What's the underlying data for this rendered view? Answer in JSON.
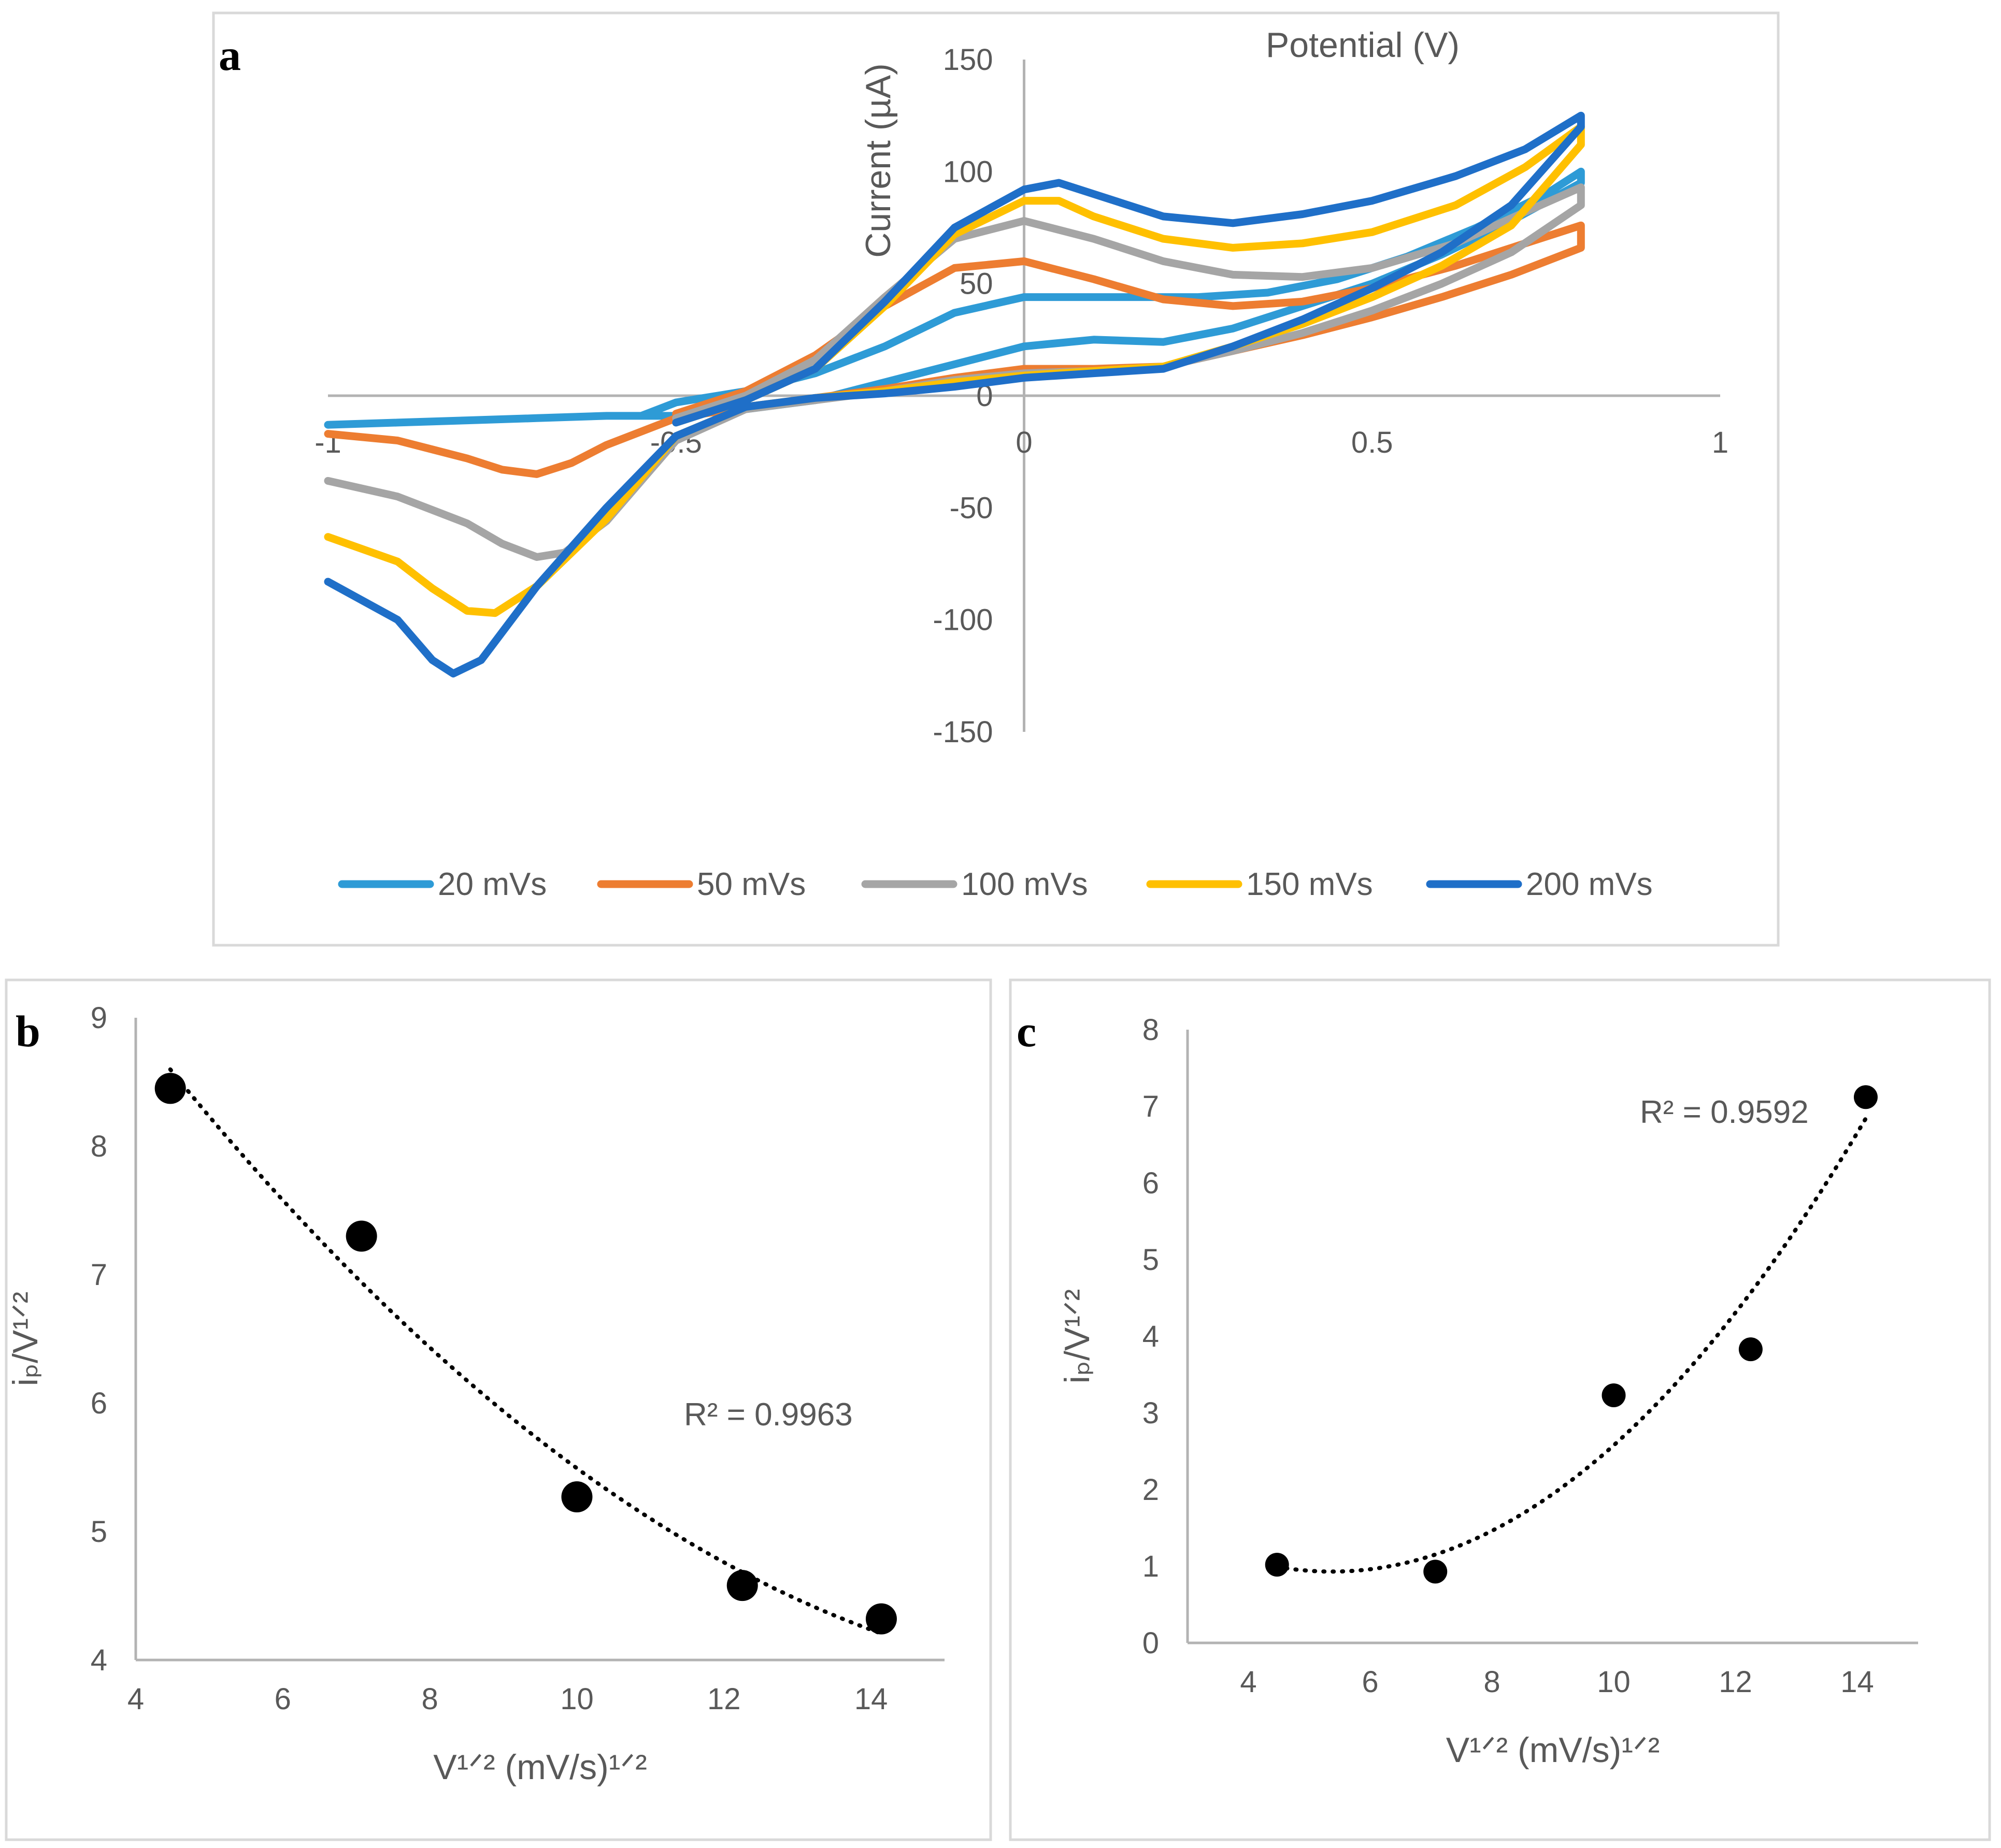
{
  "chart_data": [
    {
      "panel": "a",
      "type": "line",
      "title": "",
      "xlabel": "Potential (V)",
      "ylabel": "Current (µA)",
      "xlim": [
        -1,
        1
      ],
      "ylim": [
        -150,
        150
      ],
      "xticks": [
        -1,
        -0.5,
        0,
        0.5,
        1
      ],
      "yticks": [
        -150,
        -100,
        -50,
        0,
        50,
        100,
        150
      ],
      "xtick_labels": [
        "-1",
        "-0.5",
        "0",
        "0.5",
        "1"
      ],
      "ytick_labels": [
        "-150",
        "-100",
        "-50",
        "0",
        "50",
        "100",
        "150"
      ],
      "legend_position": "bottom",
      "series": [
        {
          "name": "20 mVs",
          "color": "#2e9bd6",
          "x": [
            -1,
            -0.9,
            -0.8,
            -0.7,
            -0.6,
            -0.5,
            -0.4,
            -0.3,
            -0.2,
            -0.1,
            0,
            0.1,
            0.2,
            0.3,
            0.4,
            0.5,
            0.6,
            0.7,
            0.8,
            0.8,
            0.75,
            0.65,
            0.55,
            0.45,
            0.35,
            0.25,
            0.2,
            0.1,
            0,
            -0.1,
            -0.2,
            -0.3,
            -0.4,
            -0.5,
            -0.55
          ],
          "y": [
            -13,
            -12,
            -11,
            -10,
            -9,
            -9,
            -6,
            -2,
            6,
            14,
            22,
            25,
            24,
            30,
            40,
            50,
            63,
            78,
            95,
            100,
            90,
            75,
            62,
            52,
            46,
            44,
            44,
            44,
            44,
            37,
            22,
            10,
            2,
            -3,
            -9
          ]
        },
        {
          "name": "50 mVs",
          "color": "#ed7d31",
          "x": [
            -1,
            -0.9,
            -0.85,
            -0.8,
            -0.75,
            -0.7,
            -0.65,
            -0.6,
            -0.5,
            -0.4,
            -0.3,
            -0.2,
            -0.1,
            0,
            0.1,
            0.2,
            0.3,
            0.4,
            0.5,
            0.6,
            0.7,
            0.8,
            0.8,
            0.72,
            0.62,
            0.5,
            0.4,
            0.3,
            0.2,
            0.1,
            0,
            -0.1,
            -0.2,
            -0.3,
            -0.4,
            -0.5
          ],
          "y": [
            -17,
            -20,
            -24,
            -28,
            -33,
            -35,
            -30,
            -22,
            -10,
            -5,
            -1,
            3,
            8,
            12,
            12,
            13,
            20,
            27,
            35,
            44,
            54,
            66,
            76,
            68,
            58,
            48,
            42,
            40,
            43,
            52,
            60,
            57,
            40,
            18,
            2,
            -8
          ]
        },
        {
          "name": "100 mVs",
          "color": "#a5a5a5",
          "x": [
            -1,
            -0.9,
            -0.8,
            -0.75,
            -0.7,
            -0.66,
            -0.6,
            -0.5,
            -0.4,
            -0.3,
            -0.2,
            -0.1,
            0,
            0.1,
            0.2,
            0.3,
            0.4,
            0.5,
            0.6,
            0.7,
            0.8,
            0.8,
            0.72,
            0.62,
            0.5,
            0.4,
            0.3,
            0.2,
            0.1,
            0,
            -0.1,
            -0.2,
            -0.3,
            -0.4,
            -0.5
          ],
          "y": [
            -38,
            -45,
            -57,
            -66,
            -72,
            -70,
            -56,
            -20,
            -6,
            -2,
            2,
            7,
            10,
            11,
            13,
            20,
            28,
            38,
            50,
            64,
            85,
            93,
            82,
            68,
            57,
            53,
            54,
            60,
            70,
            78,
            70,
            44,
            16,
            0,
            -10
          ]
        },
        {
          "name": "150 mVs",
          "color": "#ffc000",
          "x": [
            -1,
            -0.9,
            -0.85,
            -0.8,
            -0.76,
            -0.7,
            -0.6,
            -0.5,
            -0.4,
            -0.3,
            -0.2,
            -0.1,
            0,
            0.1,
            0.2,
            0.3,
            0.4,
            0.5,
            0.6,
            0.7,
            0.8,
            0.8,
            0.72,
            0.62,
            0.5,
            0.4,
            0.3,
            0.2,
            0.1,
            0.05,
            0,
            -0.1,
            -0.2,
            -0.3,
            -0.4,
            -0.5
          ],
          "y": [
            -63,
            -74,
            -86,
            -96,
            -97,
            -85,
            -55,
            -18,
            -5,
            -1,
            2,
            6,
            9,
            11,
            13,
            22,
            32,
            44,
            58,
            76,
            112,
            120,
            102,
            85,
            73,
            68,
            66,
            70,
            80,
            87,
            87,
            72,
            40,
            12,
            -2,
            -12
          ]
        },
        {
          "name": "200 mVs",
          "color": "#1f6fc8",
          "x": [
            -1,
            -0.9,
            -0.85,
            -0.82,
            -0.78,
            -0.7,
            -0.6,
            -0.5,
            -0.4,
            -0.3,
            -0.2,
            -0.1,
            0,
            0.1,
            0.2,
            0.3,
            0.4,
            0.5,
            0.6,
            0.7,
            0.8,
            0.8,
            0.72,
            0.62,
            0.5,
            0.4,
            0.3,
            0.2,
            0.1,
            0.05,
            0,
            -0.1,
            -0.2,
            -0.3,
            -0.4,
            -0.5
          ],
          "y": [
            -83,
            -100,
            -118,
            -124,
            -118,
            -85,
            -50,
            -18,
            -5,
            -1,
            1,
            4,
            8,
            10,
            12,
            22,
            34,
            48,
            64,
            85,
            120,
            125,
            110,
            98,
            87,
            81,
            77,
            80,
            90,
            95,
            92,
            75,
            42,
            12,
            -2,
            -12
          ]
        }
      ]
    },
    {
      "panel": "b",
      "type": "scatter",
      "xlabel": "V¹ᐟ² (mV/s)¹ᐟ²",
      "ylabel": "iₚ/V¹ᐟ²",
      "xlim": [
        4,
        15
      ],
      "ylim": [
        4,
        9
      ],
      "xticks": [
        4,
        6,
        8,
        10,
        12,
        14
      ],
      "yticks": [
        4,
        5,
        6,
        7,
        8,
        9
      ],
      "xtick_labels": [
        "4",
        "6",
        "8",
        "10",
        "12",
        "14"
      ],
      "ytick_labels": [
        "4",
        "5",
        "6",
        "7",
        "8",
        "9"
      ],
      "points": {
        "x": [
          4.47,
          7.07,
          10.0,
          12.25,
          14.14
        ],
        "y": [
          8.45,
          7.3,
          5.27,
          4.58,
          4.32
        ]
      },
      "trendline": {
        "type": "polynomial",
        "order": 2,
        "style": "dotted",
        "r2_label": "R² = 0.9963"
      }
    },
    {
      "panel": "c",
      "type": "scatter",
      "xlabel": "V¹ᐟ² (mV/s)¹ᐟ²",
      "ylabel": "iₚ/V¹ᐟ²",
      "xlim": [
        3,
        15
      ],
      "ylim": [
        0,
        8
      ],
      "xticks": [
        4,
        6,
        8,
        10,
        12,
        14
      ],
      "yticks": [
        0,
        1,
        2,
        3,
        4,
        5,
        6,
        7,
        8
      ],
      "xtick_labels": [
        "4",
        "6",
        "8",
        "10",
        "12",
        "14"
      ],
      "ytick_labels": [
        "0",
        "1",
        "2",
        "3",
        "4",
        "5",
        "6",
        "7",
        "8"
      ],
      "points": {
        "x": [
          4.47,
          7.07,
          10.0,
          12.25,
          14.14
        ],
        "y": [
          1.02,
          0.93,
          3.23,
          3.83,
          7.12
        ]
      },
      "trendline": {
        "type": "polynomial",
        "order": 2,
        "style": "dotted",
        "r2_label": "R² = 0.9592"
      }
    }
  ],
  "labels": {
    "panel_a": "a",
    "panel_b": "b",
    "panel_c": "c",
    "r2_b": "R² = 0.9963",
    "r2_c": "R² = 0.9592"
  }
}
